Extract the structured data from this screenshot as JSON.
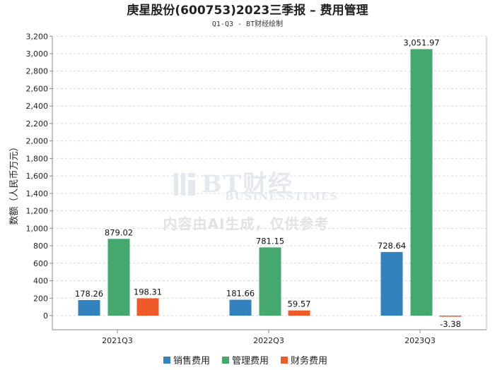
{
  "chart_data": {
    "type": "bar",
    "title": "庚星股份(600753)2023三季报 – 费用管理",
    "subtitle": "Q1-Q3 - BT财经绘制",
    "xlabel": "",
    "ylabel": "数额（人民币万元）",
    "categories": [
      "2021Q3",
      "2022Q3",
      "2023Q3"
    ],
    "series": [
      {
        "name": "销售费用",
        "values": [
          178.26,
          181.66,
          728.64
        ],
        "labels": [
          "178.26",
          "181.66",
          "728.64"
        ],
        "color": "#3182bd"
      },
      {
        "name": "管理费用",
        "values": [
          879.02,
          781.15,
          3051.97
        ],
        "labels": [
          "879.02",
          "781.15",
          "3,051.97"
        ],
        "color": "#45a86f"
      },
      {
        "name": "财务费用",
        "values": [
          198.31,
          59.57,
          -3.38
        ],
        "labels": [
          "198.31",
          "59.57",
          "-3.38"
        ],
        "color": "#f05a28"
      }
    ],
    "ylim": [
      -200,
      3200
    ],
    "yticks": [
      0,
      200,
      400,
      600,
      800,
      1000,
      1200,
      1400,
      1600,
      1800,
      2000,
      2200,
      2400,
      2600,
      2800,
      3000,
      3200
    ],
    "ytick_labels": [
      "0",
      "200",
      "400",
      "600",
      "800",
      "1,000",
      "1,200",
      "1,400",
      "1,600",
      "1,800",
      "2,000",
      "2,200",
      "2,400",
      "2,600",
      "2,800",
      "3,000",
      "3,200"
    ],
    "grid": true,
    "legend_position": "bottom-center"
  },
  "watermark": {
    "brand": "BT财经",
    "brand_en": "BUSINESSTIMES",
    "note": "内容由AI生成，仅供参考"
  }
}
